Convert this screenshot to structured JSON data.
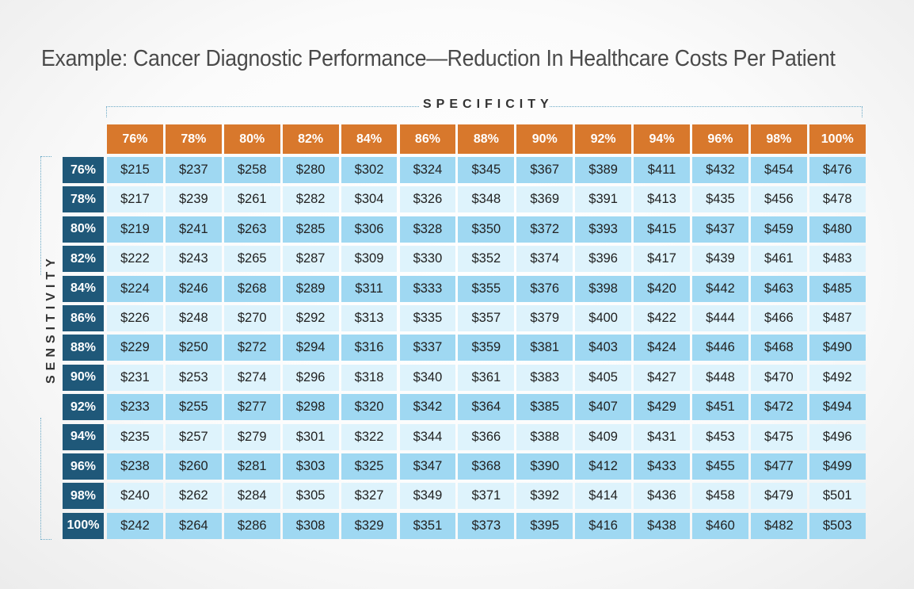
{
  "title": "Example: Cancer Diagnostic Performance—Reduction In Healthcare Costs Per Patient",
  "colors": {
    "column_header": "#d8782c",
    "row_header": "#1f5879",
    "row_dark": "#9fd8f2",
    "row_light": "#def3fc"
  },
  "chart_data": {
    "type": "table",
    "title": "Example: Cancer Diagnostic Performance—Reduction In Healthcare Costs Per Patient",
    "column_axis_label": "SPECIFICITY",
    "row_axis_label": "SENSITIVITY",
    "columns": [
      "76%",
      "78%",
      "80%",
      "82%",
      "84%",
      "86%",
      "88%",
      "90%",
      "92%",
      "94%",
      "96%",
      "98%",
      "100%"
    ],
    "rows": [
      "76%",
      "78%",
      "80%",
      "82%",
      "84%",
      "86%",
      "88%",
      "90%",
      "92%",
      "94%",
      "96%",
      "98%",
      "100%"
    ],
    "values": [
      [
        "$215",
        "$237",
        "$258",
        "$280",
        "$302",
        "$324",
        "$345",
        "$367",
        "$389",
        "$411",
        "$432",
        "$454",
        "$476"
      ],
      [
        "$217",
        "$239",
        "$261",
        "$282",
        "$304",
        "$326",
        "$348",
        "$369",
        "$391",
        "$413",
        "$435",
        "$456",
        "$478"
      ],
      [
        "$219",
        "$241",
        "$263",
        "$285",
        "$306",
        "$328",
        "$350",
        "$372",
        "$393",
        "$415",
        "$437",
        "$459",
        "$480"
      ],
      [
        "$222",
        "$243",
        "$265",
        "$287",
        "$309",
        "$330",
        "$352",
        "$374",
        "$396",
        "$417",
        "$439",
        "$461",
        "$483"
      ],
      [
        "$224",
        "$246",
        "$268",
        "$289",
        "$311",
        "$333",
        "$355",
        "$376",
        "$398",
        "$420",
        "$442",
        "$463",
        "$485"
      ],
      [
        "$226",
        "$248",
        "$270",
        "$292",
        "$313",
        "$335",
        "$357",
        "$379",
        "$400",
        "$422",
        "$444",
        "$466",
        "$487"
      ],
      [
        "$229",
        "$250",
        "$272",
        "$294",
        "$316",
        "$337",
        "$359",
        "$381",
        "$403",
        "$424",
        "$446",
        "$468",
        "$490"
      ],
      [
        "$231",
        "$253",
        "$274",
        "$296",
        "$318",
        "$340",
        "$361",
        "$383",
        "$405",
        "$427",
        "$448",
        "$470",
        "$492"
      ],
      [
        "$233",
        "$255",
        "$277",
        "$298",
        "$320",
        "$342",
        "$364",
        "$385",
        "$407",
        "$429",
        "$451",
        "$472",
        "$494"
      ],
      [
        "$235",
        "$257",
        "$279",
        "$301",
        "$322",
        "$344",
        "$366",
        "$388",
        "$409",
        "$431",
        "$453",
        "$475",
        "$496"
      ],
      [
        "$238",
        "$260",
        "$281",
        "$303",
        "$325",
        "$347",
        "$368",
        "$390",
        "$412",
        "$433",
        "$455",
        "$477",
        "$499"
      ],
      [
        "$240",
        "$262",
        "$284",
        "$305",
        "$327",
        "$349",
        "$371",
        "$392",
        "$414",
        "$436",
        "$458",
        "$479",
        "$501"
      ],
      [
        "$242",
        "$264",
        "$286",
        "$308",
        "$329",
        "$351",
        "$373",
        "$395",
        "$416",
        "$438",
        "$460",
        "$482",
        "$503"
      ]
    ]
  }
}
